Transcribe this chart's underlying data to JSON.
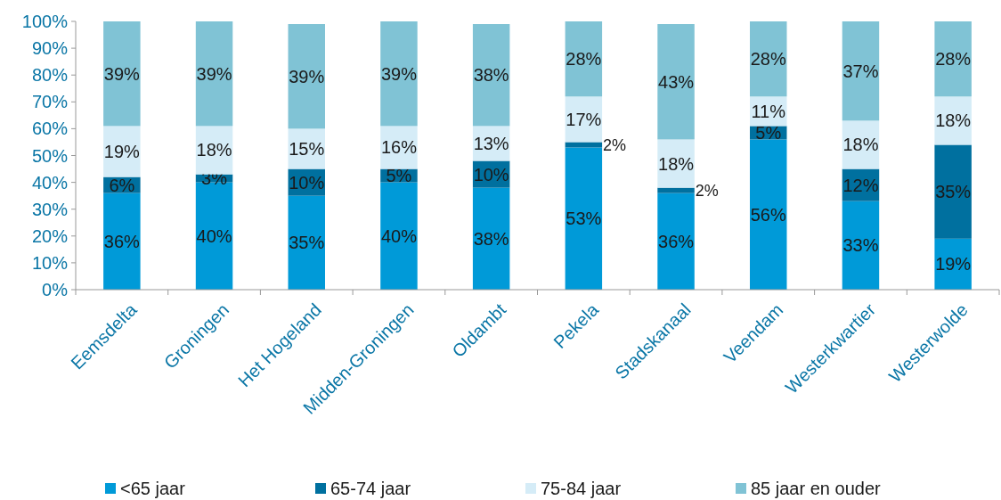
{
  "chart_data": {
    "type": "bar",
    "stacked": true,
    "categories": [
      "Eemsdelta",
      "Groningen",
      "Het Hogeland",
      "Midden-Groningen",
      "Oldambt",
      "Pekela",
      "Stadskanaal",
      "Veendam",
      "Westerkwartier",
      "Westerwolde"
    ],
    "series": [
      {
        "name": "<65 jaar",
        "color": "#009ad8",
        "values": [
          36,
          40,
          35,
          40,
          38,
          53,
          36,
          56,
          33,
          19
        ],
        "value_labels": [
          "36%",
          "40%",
          "35%",
          "40%",
          "38%",
          "53%",
          "36%",
          "56%",
          "33%",
          "19%"
        ]
      },
      {
        "name": "65-74 jaar",
        "color": "#00709f",
        "values": [
          6,
          3,
          10,
          5,
          10,
          2,
          2,
          5,
          12,
          35
        ],
        "value_labels": [
          "6%",
          "3%",
          "10%",
          "5%",
          "10%",
          "2%",
          "2%",
          "5%",
          "12%",
          "35%"
        ]
      },
      {
        "name": "75-84 jaar",
        "color": "#d5ecf7",
        "values": [
          19,
          18,
          15,
          16,
          13,
          17,
          18,
          11,
          18,
          18
        ],
        "value_labels": [
          "19%",
          "18%",
          "15%",
          "16%",
          "13%",
          "17%",
          "18%",
          "11%",
          "18%",
          "18%"
        ]
      },
      {
        "name": "85 jaar en ouder",
        "color": "#80c3d5",
        "values": [
          39,
          39,
          39,
          39,
          38,
          28,
          43,
          28,
          37,
          28
        ],
        "value_labels": [
          "39%",
          "39%",
          "39%",
          "39%",
          "38%",
          "28%",
          "43%",
          "28%",
          "37%",
          "28%"
        ]
      }
    ],
    "ylim": [
      0,
      100
    ],
    "yticks": [
      {
        "value": 0,
        "label": "0%"
      },
      {
        "value": 10,
        "label": "10%"
      },
      {
        "value": 20,
        "label": "20%"
      },
      {
        "value": 30,
        "label": "30%"
      },
      {
        "value": 40,
        "label": "40%"
      },
      {
        "value": 50,
        "label": "50%"
      },
      {
        "value": 60,
        "label": "60%"
      },
      {
        "value": 70,
        "label": "70%"
      },
      {
        "value": 80,
        "label": "80%"
      },
      {
        "value": 90,
        "label": "90%"
      },
      {
        "value": 100,
        "label": "100%"
      }
    ],
    "grid": false,
    "legend": "bottom"
  }
}
